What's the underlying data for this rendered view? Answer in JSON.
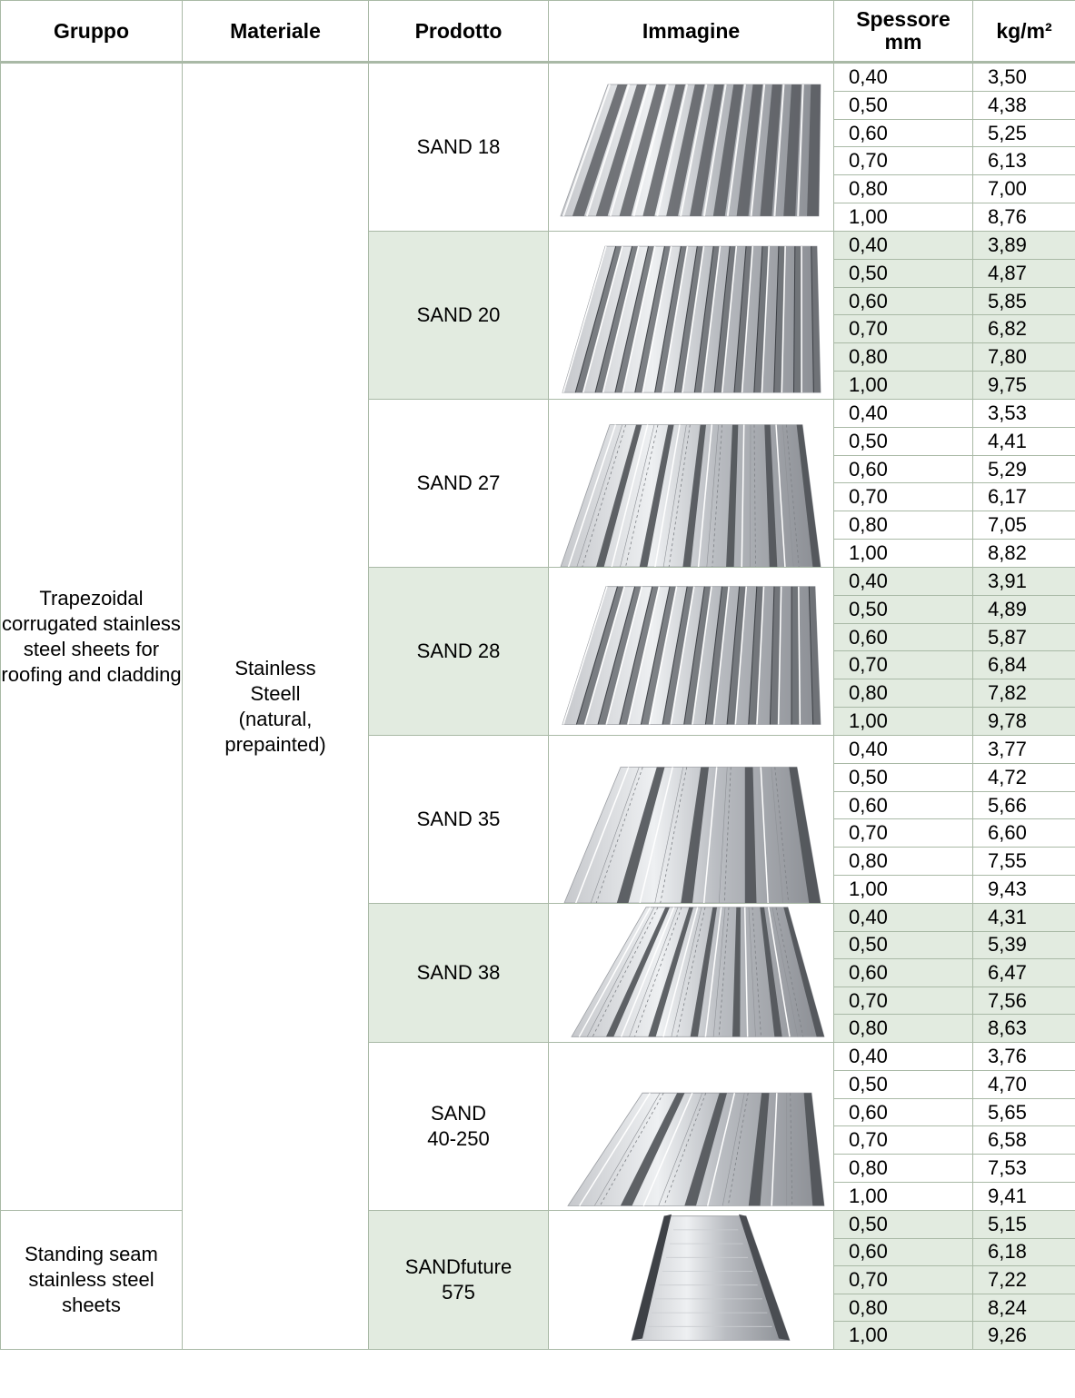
{
  "headers": {
    "gruppo": "Gruppo",
    "materiale": "Materiale",
    "prodotto": "Prodotto",
    "immagine": "Immagine",
    "spessore_line1": "Spessore",
    "spessore_line2": "mm",
    "kg": "kg/m²"
  },
  "groups": {
    "trapezoidal": "Trapezoidal corrugated stainless steel sheets for roofing and cladding",
    "standing": "Standing seam stainless steel sheets"
  },
  "material": {
    "line1": "Stainless",
    "line2": "Steell",
    "line3": "(natural,",
    "line4": "prepainted)"
  },
  "products": [
    {
      "line1": "SAND 18",
      "line2": "",
      "image_icon": "corrugated-sheet-image",
      "rows": [
        [
          "0,40",
          "3,50"
        ],
        [
          "0,50",
          "4,38"
        ],
        [
          "0,60",
          "5,25"
        ],
        [
          "0,70",
          "6,13"
        ],
        [
          "0,80",
          "7,00"
        ],
        [
          "1,00",
          "8,76"
        ]
      ]
    },
    {
      "line1": "SAND 20",
      "line2": "",
      "image_icon": "trapezoidal-sheet-image",
      "rows": [
        [
          "0,40",
          "3,89"
        ],
        [
          "0,50",
          "4,87"
        ],
        [
          "0,60",
          "5,85"
        ],
        [
          "0,70",
          "6,82"
        ],
        [
          "0,80",
          "7,80"
        ],
        [
          "1,00",
          "9,75"
        ]
      ]
    },
    {
      "line1": "SAND 27",
      "line2": "",
      "image_icon": "trapezoidal-sheet-image",
      "rows": [
        [
          "0,40",
          "3,53"
        ],
        [
          "0,50",
          "4,41"
        ],
        [
          "0,60",
          "5,29"
        ],
        [
          "0,70",
          "6,17"
        ],
        [
          "0,80",
          "7,05"
        ],
        [
          "1,00",
          "8,82"
        ]
      ]
    },
    {
      "line1": "SAND 28",
      "line2": "",
      "image_icon": "trapezoidal-sheet-image",
      "rows": [
        [
          "0,40",
          "3,91"
        ],
        [
          "0,50",
          "4,89"
        ],
        [
          "0,60",
          "5,87"
        ],
        [
          "0,70",
          "6,84"
        ],
        [
          "0,80",
          "7,82"
        ],
        [
          "1,00",
          "9,78"
        ]
      ]
    },
    {
      "line1": "SAND 35",
      "line2": "",
      "image_icon": "trapezoidal-sheet-image",
      "rows": [
        [
          "0,40",
          "3,77"
        ],
        [
          "0,50",
          "4,72"
        ],
        [
          "0,60",
          "5,66"
        ],
        [
          "0,70",
          "6,60"
        ],
        [
          "0,80",
          "7,55"
        ],
        [
          "1,00",
          "9,43"
        ]
      ]
    },
    {
      "line1": "SAND 38",
      "line2": "",
      "image_icon": "trapezoidal-sheet-image",
      "rows": [
        [
          "0,40",
          "4,31"
        ],
        [
          "0,50",
          "5,39"
        ],
        [
          "0,60",
          "6,47"
        ],
        [
          "0,70",
          "7,56"
        ],
        [
          "0,80",
          "8,63"
        ]
      ]
    },
    {
      "line1": "SAND",
      "line2": "40-250",
      "image_icon": "trapezoidal-sheet-image",
      "rows": [
        [
          "0,40",
          "3,76"
        ],
        [
          "0,50",
          "4,70"
        ],
        [
          "0,60",
          "5,65"
        ],
        [
          "0,70",
          "6,58"
        ],
        [
          "0,80",
          "7,53"
        ],
        [
          "1,00",
          "9,41"
        ]
      ]
    },
    {
      "line1": "SANDfuture",
      "line2": "575",
      "image_icon": "standing-seam-sheet-image",
      "rows": [
        [
          "0,50",
          "5,15"
        ],
        [
          "0,60",
          "6,18"
        ],
        [
          "0,70",
          "7,22"
        ],
        [
          "0,80",
          "8,24"
        ],
        [
          "1,00",
          "9,26"
        ]
      ]
    }
  ],
  "colors": {
    "shade": "#e2ebe0",
    "border": "#a9b9a6",
    "metal_light": "#e9eaec",
    "metal_dark": "#4b4e53"
  }
}
